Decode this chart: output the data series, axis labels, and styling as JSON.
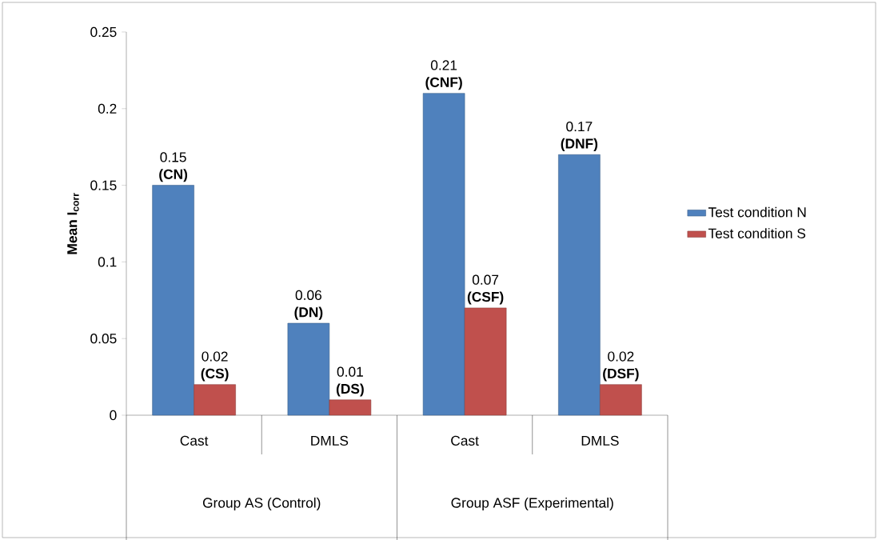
{
  "chart_data": {
    "type": "bar",
    "ylabel": "Mean I$_{corr}$",
    "categories": [
      "Cast",
      "DMLS",
      "Cast",
      "DMLS"
    ],
    "series": [
      {
        "name": "Test condition N",
        "color": "#4f81bd",
        "values": [
          0.15,
          0.06,
          0.21,
          0.17
        ],
        "value_labels": [
          "0.15 **(CN)**",
          "0.06 **(DN)**",
          "0.21 **(CNF)**",
          "0.17 **(DNF)**"
        ]
      },
      {
        "name": "Test condition S",
        "color": "#c0504d",
        "values": [
          0.02,
          0.01,
          0.07,
          0.02
        ],
        "value_labels": [
          "0.02 **(CS)**",
          "0.01 **(DS)**",
          "0.07 **(CSF)**",
          "0.02 **(DSF)**"
        ]
      }
    ],
    "annotations": [
      "Group AS (Control)",
      "Group ASF (Experimental)"
    ],
    "ylim": [
      0,
      0.25
    ],
    "yticks": [
      0,
      0.05,
      0.1,
      0.15,
      0.2,
      0.25
    ],
    "grid": false,
    "legend": "right"
  }
}
